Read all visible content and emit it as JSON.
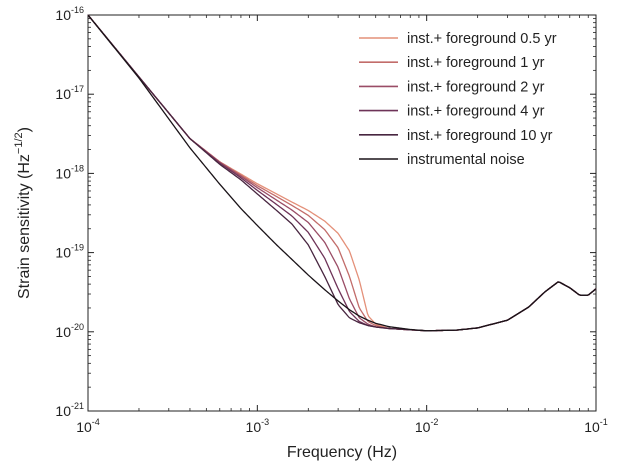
{
  "chart_data": {
    "type": "line",
    "xlabel": "Frequency (Hz)",
    "ylabel": {
      "base": "Strain sensitivity (Hz",
      "sup": "−1/2",
      "end": ")"
    },
    "xscale": "log",
    "yscale": "log",
    "xlim": [
      0.0001,
      0.1
    ],
    "ylim": [
      1e-21,
      1e-16
    ],
    "grid": false,
    "legend_position": "top-right",
    "x_ticks": [
      {
        "value": 0.0001,
        "base": "10",
        "exp": "-4"
      },
      {
        "value": 0.001,
        "base": "10",
        "exp": "-3"
      },
      {
        "value": 0.01,
        "base": "10",
        "exp": "-2"
      },
      {
        "value": 0.1,
        "base": "10",
        "exp": "-1"
      }
    ],
    "y_ticks": [
      {
        "value": 1e-16,
        "base": "10",
        "exp": "-16"
      },
      {
        "value": 1e-17,
        "base": "10",
        "exp": "-17"
      },
      {
        "value": 1e-18,
        "base": "10",
        "exp": "-18"
      },
      {
        "value": 1e-19,
        "base": "10",
        "exp": "-19"
      },
      {
        "value": 1e-20,
        "base": "10",
        "exp": "-20"
      },
      {
        "value": 1e-21,
        "base": "10",
        "exp": "-21"
      }
    ],
    "x": [
      0.0001,
      0.0002,
      0.0004,
      0.0006,
      0.0008,
      0.001,
      0.0013,
      0.0016,
      0.002,
      0.0025,
      0.003,
      0.0035,
      0.004,
      0.0045,
      0.005,
      0.006,
      0.008,
      0.01,
      0.015,
      0.02,
      0.03,
      0.04,
      0.05,
      0.06,
      0.07,
      0.08,
      0.09,
      0.1
    ],
    "series": [
      {
        "name": "inst.+ foreground 0.5 yr",
        "color": "#e49079",
        "values": [
          1e-16,
          1.65e-17,
          2.75e-18,
          1.4e-18,
          9.8e-19,
          7.4e-19,
          5.5e-19,
          4.35e-19,
          3.4e-19,
          2.5e-19,
          1.75e-19,
          1.05e-19,
          4.5e-20,
          1.6e-20,
          1.25e-20,
          1.1e-20,
          1.06e-20,
          1.03e-20,
          1.05e-20,
          1.12e-20,
          1.4e-20,
          2.05e-20,
          3.2e-20,
          4.3e-20,
          3.6e-20,
          2.9e-20,
          2.9e-20,
          3.5e-20
        ]
      },
      {
        "name": "inst.+ foreground 1 yr",
        "color": "#c26c6a",
        "values": [
          1e-16,
          1.65e-17,
          2.75e-18,
          1.4e-18,
          9.5e-19,
          7e-19,
          5.1e-19,
          3.95e-19,
          2.95e-19,
          1.95e-19,
          1.15e-19,
          5e-20,
          2e-20,
          1.35e-20,
          1.2e-20,
          1.1e-20,
          1.06e-20,
          1.03e-20,
          1.05e-20,
          1.12e-20,
          1.4e-20,
          2.05e-20,
          3.2e-20,
          4.3e-20,
          3.6e-20,
          2.9e-20,
          2.9e-20,
          3.5e-20
        ]
      },
      {
        "name": "inst.+ foreground 2 yr",
        "color": "#9a4d66",
        "values": [
          1e-16,
          1.65e-17,
          2.75e-18,
          1.38e-18,
          9.2e-19,
          6.6e-19,
          4.6e-19,
          3.45e-19,
          2.4e-19,
          1.35e-19,
          6.5e-20,
          2.6e-20,
          1.5e-20,
          1.25e-20,
          1.15e-20,
          1.1e-20,
          1.06e-20,
          1.03e-20,
          1.05e-20,
          1.12e-20,
          1.4e-20,
          2.05e-20,
          3.2e-20,
          4.3e-20,
          3.6e-20,
          2.9e-20,
          2.9e-20,
          3.5e-20
        ]
      },
      {
        "name": "inst.+ foreground 4 yr",
        "color": "#6e3358",
        "values": [
          1e-16,
          1.65e-17,
          2.75e-18,
          1.35e-18,
          8.8e-19,
          6.1e-19,
          4.05e-19,
          2.9e-19,
          1.8e-19,
          8.5e-20,
          3.5e-20,
          1.8e-20,
          1.35e-20,
          1.2e-20,
          1.15e-20,
          1.1e-20,
          1.06e-20,
          1.03e-20,
          1.05e-20,
          1.12e-20,
          1.4e-20,
          2.05e-20,
          3.2e-20,
          4.3e-20,
          3.6e-20,
          2.9e-20,
          2.9e-20,
          3.5e-20
        ]
      },
      {
        "name": "inst.+ foreground 10 yr",
        "color": "#482640",
        "values": [
          1e-16,
          1.65e-17,
          2.75e-18,
          1.3e-18,
          8.3e-19,
          5.5e-19,
          3.4e-19,
          2.3e-19,
          1.25e-19,
          5e-20,
          2.2e-20,
          1.5e-20,
          1.3e-20,
          1.2e-20,
          1.15e-20,
          1.1e-20,
          1.06e-20,
          1.03e-20,
          1.05e-20,
          1.12e-20,
          1.4e-20,
          2.05e-20,
          3.2e-20,
          4.3e-20,
          3.6e-20,
          2.9e-20,
          2.9e-20,
          3.5e-20
        ]
      },
      {
        "name": "instrumental noise",
        "color": "#1a1318",
        "values": [
          1e-16,
          1.6e-17,
          2.1e-18,
          7.3e-19,
          3.6e-19,
          2.2e-19,
          1.25e-19,
          8.2e-20,
          5.2e-20,
          3.4e-20,
          2.45e-20,
          1.9e-20,
          1.58e-20,
          1.4e-20,
          1.28e-20,
          1.16e-20,
          1.07e-20,
          1.03e-20,
          1.05e-20,
          1.12e-20,
          1.4e-20,
          2.05e-20,
          3.2e-20,
          4.3e-20,
          3.6e-20,
          2.9e-20,
          2.9e-20,
          3.5e-20
        ]
      }
    ]
  }
}
